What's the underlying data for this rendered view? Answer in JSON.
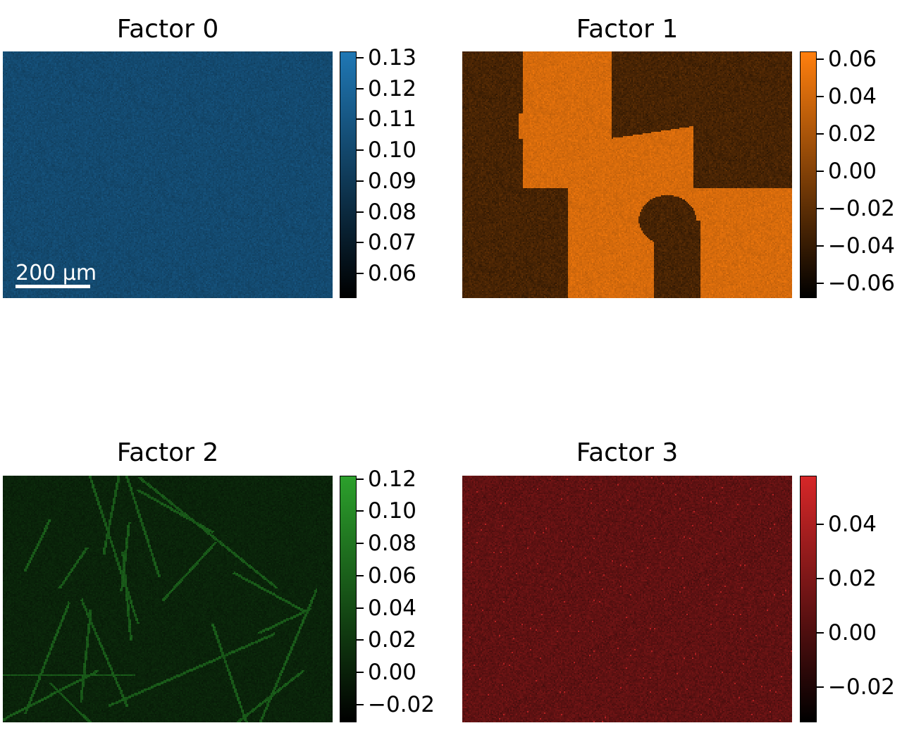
{
  "chart_data": [
    {
      "type": "heatmap",
      "title": "Factor 0",
      "colormap": [
        "#000000",
        "#1f77b4"
      ],
      "colorbar": {
        "vmin": 0.052,
        "vmax": 0.132,
        "ticks": [
          "0.13",
          "0.12",
          "0.11",
          "0.10",
          "0.09",
          "0.08",
          "0.07",
          "0.06"
        ],
        "tick_values": [
          0.13,
          0.12,
          0.11,
          0.1,
          0.09,
          0.08,
          0.07,
          0.06
        ]
      },
      "texture": "uniform",
      "scalebar": "200 µm"
    },
    {
      "type": "heatmap",
      "title": "Factor 1",
      "colormap": [
        "#000000",
        "#ff7f0e"
      ],
      "colorbar": {
        "vmin": -0.068,
        "vmax": 0.064,
        "ticks": [
          "0.06",
          "0.04",
          "0.02",
          "0.00",
          "−0.02",
          "−0.04",
          "−0.06"
        ],
        "tick_values": [
          0.06,
          0.04,
          0.02,
          0.0,
          -0.02,
          -0.04,
          -0.06
        ]
      },
      "texture": "grains"
    },
    {
      "type": "heatmap",
      "title": "Factor 2",
      "colormap": [
        "#000000",
        "#2ca02c"
      ],
      "colorbar": {
        "vmin": -0.031,
        "vmax": 0.122,
        "ticks": [
          "0.12",
          "0.10",
          "0.08",
          "0.06",
          "0.04",
          "0.02",
          "0.00",
          "−0.02"
        ],
        "tick_values": [
          0.12,
          0.1,
          0.08,
          0.06,
          0.04,
          0.02,
          0.0,
          -0.02
        ]
      },
      "texture": "boundaries"
    },
    {
      "type": "heatmap",
      "title": "Factor 3",
      "colormap": [
        "#000000",
        "#d62728"
      ],
      "colorbar": {
        "vmin": -0.033,
        "vmax": 0.058,
        "ticks": [
          "0.04",
          "0.02",
          "0.00",
          "−0.02"
        ],
        "tick_values": [
          0.04,
          0.02,
          0.0,
          -0.02
        ]
      },
      "texture": "speckle"
    }
  ]
}
